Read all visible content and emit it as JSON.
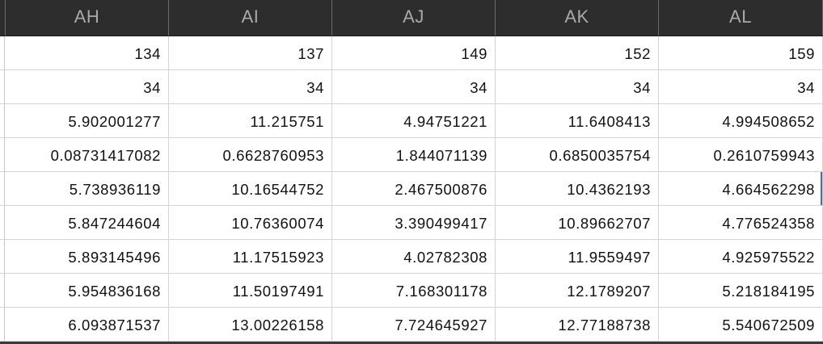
{
  "columns": [
    "AH",
    "AI",
    "AJ",
    "AK",
    "AL"
  ],
  "rows": [
    [
      "134",
      "137",
      "149",
      "152",
      "159"
    ],
    [
      "34",
      "34",
      "34",
      "34",
      "34"
    ],
    [
      "5.902001277",
      "11.215751",
      "4.94751221",
      "11.6408413",
      "4.994508652"
    ],
    [
      "0.08731417082",
      "0.6628760953",
      "1.844071139",
      "0.6850035754",
      "0.2610759943"
    ],
    [
      "5.738936119",
      "10.16544752",
      "2.467500876",
      "10.4362193",
      "4.664562298"
    ],
    [
      "5.847244604",
      "10.76360074",
      "3.390499417",
      "10.89662707",
      "4.776524358"
    ],
    [
      "5.893145496",
      "11.17515923",
      "4.02782308",
      "11.9559497",
      "4.925975522"
    ],
    [
      "5.954836168",
      "11.50197491",
      "7.168301178",
      "12.1789207",
      "5.218184195"
    ],
    [
      "6.093871537",
      "13.00226158",
      "7.724645927",
      "12.77188738",
      "5.540672509"
    ]
  ],
  "colors": {
    "header_bg": "#2d2d2d",
    "header_text": "#a9a9a9",
    "gridline": "#d4d4d4",
    "selection": "#2f6fd6"
  }
}
